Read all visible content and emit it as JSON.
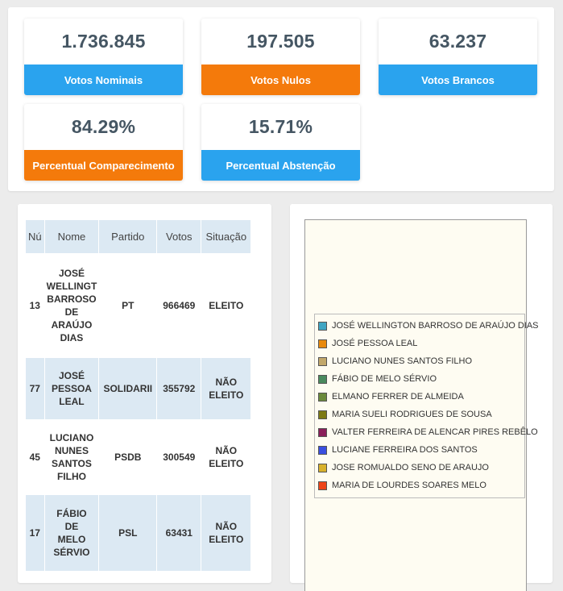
{
  "stats": [
    {
      "value": "1.736.845",
      "label": "Votos Nominais",
      "color": "#2aa3ee"
    },
    {
      "value": "197.505",
      "label": "Votos Nulos",
      "color": "#f47a0b"
    },
    {
      "value": "63.237",
      "label": "Votos Brancos",
      "color": "#2aa3ee"
    },
    {
      "value": "84.29%",
      "label": "Percentual Comparecimento",
      "color": "#f47a0b"
    },
    {
      "value": "15.71%",
      "label": "Percentual Abstenção",
      "color": "#2aa3ee"
    }
  ],
  "table": {
    "headers": [
      "Nú",
      "Nome",
      "Partido",
      "Votos",
      "Situação"
    ],
    "rows": [
      {
        "numero": "13",
        "nome": "JOSÉ WELLINGTON BARROSO DE ARAÚJO DIAS",
        "nome_lines": [
          "JOSÉ",
          "WELLINGT",
          "BARROSO",
          "DE",
          "ARAÚJO",
          "DIAS"
        ],
        "partido": "PT",
        "votos": "966469",
        "situacao": "ELEITO",
        "situacao_lines": [
          "ELEITO"
        ]
      },
      {
        "numero": "77",
        "nome": "JOSÉ PESSOA LEAL",
        "nome_lines": [
          "JOSÉ",
          "PESSOA",
          "LEAL"
        ],
        "partido": "SOLIDARII",
        "votos": "355792",
        "situacao": "NÃO ELEITO",
        "situacao_lines": [
          "NÃO",
          "ELEITO"
        ]
      },
      {
        "numero": "45",
        "nome": "LUCIANO NUNES SANTOS FILHO",
        "nome_lines": [
          "LUCIANO",
          "NUNES",
          "SANTOS",
          "FILHO"
        ],
        "partido": "PSDB",
        "votos": "300549",
        "situacao": "NÃO ELEITO",
        "situacao_lines": [
          "NÃO",
          "ELEITO"
        ]
      },
      {
        "numero": "17",
        "nome": "FÁBIO DE MELO SÉRVIO",
        "nome_lines": [
          "FÁBIO",
          "DE",
          "MELO",
          "SÉRVIO"
        ],
        "partido": "PSL",
        "votos": "63431",
        "situacao": "NÃO ELEITO",
        "situacao_lines": [
          "NÃO",
          "ELEITO"
        ]
      }
    ]
  },
  "legend": [
    {
      "label": "JOSÉ WELLINGTON BARROSO DE ARAÚJO DIAS",
      "color": "#3fa5c3"
    },
    {
      "label": "JOSÉ PESSOA LEAL",
      "color": "#e8890c"
    },
    {
      "label": "LUCIANO NUNES SANTOS FILHO",
      "color": "#c2a86b"
    },
    {
      "label": "FÁBIO DE MELO SÉRVIO",
      "color": "#4a8a5e"
    },
    {
      "label": "ELMANO FERRER DE ALMEIDA",
      "color": "#6b8a3c"
    },
    {
      "label": "MARIA SUELI RODRIGUES DE SOUSA",
      "color": "#7d7a14"
    },
    {
      "label": "VALTER FERREIRA DE ALENCAR PIRES REBÊLO",
      "color": "#8a1f5a"
    },
    {
      "label": "LUCIANE FERREIRA DOS SANTOS",
      "color": "#3a4fe0"
    },
    {
      "label": "JOSE ROMUALDO SENO DE ARAUJO",
      "color": "#d8b12c"
    },
    {
      "label": "MARIA DE LOURDES SOARES MELO",
      "color": "#ee4418"
    }
  ]
}
